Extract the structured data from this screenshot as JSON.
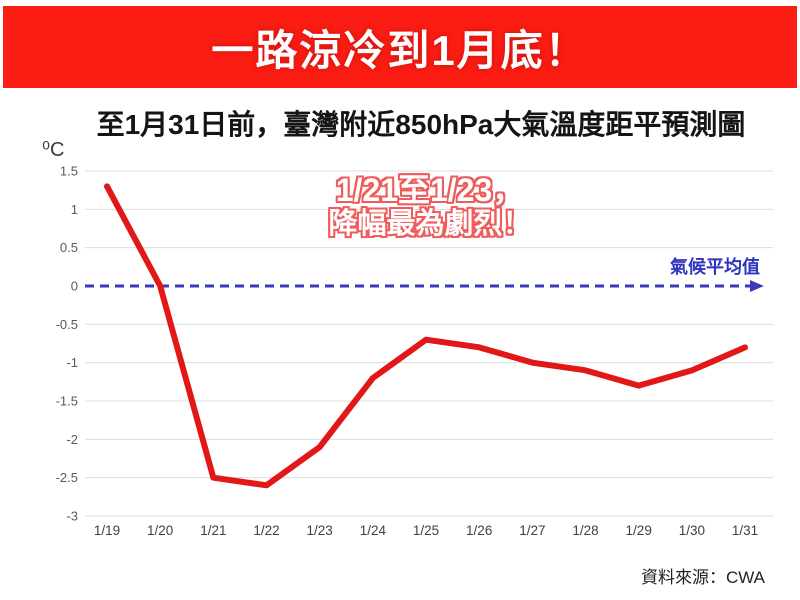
{
  "banner": {
    "title": "一路涼冷到1月底！",
    "bg_color": "#fb1c13",
    "text_color": "#ffffff"
  },
  "chart": {
    "title": "至1月31日前，臺灣附近850hPa大氣溫度距平預測圖",
    "unit_label": "⁰C",
    "annotation": {
      "line1": "1/21至1/23，",
      "line2": "降幅最為劇烈！",
      "outline_color": "#ee5c5c"
    },
    "zero_line_label": "氣候平均值"
  },
  "chart_data": {
    "type": "line",
    "title": "至1月31日前，臺灣附近850hPa大氣溫度距平預測圖",
    "xlabel": "",
    "ylabel": "⁰C",
    "categories": [
      "1/19",
      "1/20",
      "1/21",
      "1/22",
      "1/23",
      "1/24",
      "1/25",
      "1/26",
      "1/27",
      "1/28",
      "1/29",
      "1/30",
      "1/31"
    ],
    "values": [
      1.3,
      0,
      -2.5,
      -2.6,
      -2.1,
      -1.2,
      -0.7,
      -0.8,
      -1.0,
      -1.1,
      -1.3,
      -1.1,
      -0.8
    ],
    "y_tick_labels": [
      "1.5",
      "1",
      "0.5",
      "0",
      "-0.5",
      "-1",
      "-1.5",
      "-2",
      "-2.5",
      "-3"
    ],
    "ylim": [
      -3,
      1.5
    ],
    "grid": true,
    "legend": "none",
    "line_color": "#e21717",
    "grid_color": "#dcdcdc",
    "tick_color": "#595959",
    "zero_line": {
      "value": 0,
      "style": "dashed",
      "color": "#3a3ab8",
      "label": "氣候平均值"
    }
  },
  "source": {
    "text": "資料來源：CWA"
  }
}
